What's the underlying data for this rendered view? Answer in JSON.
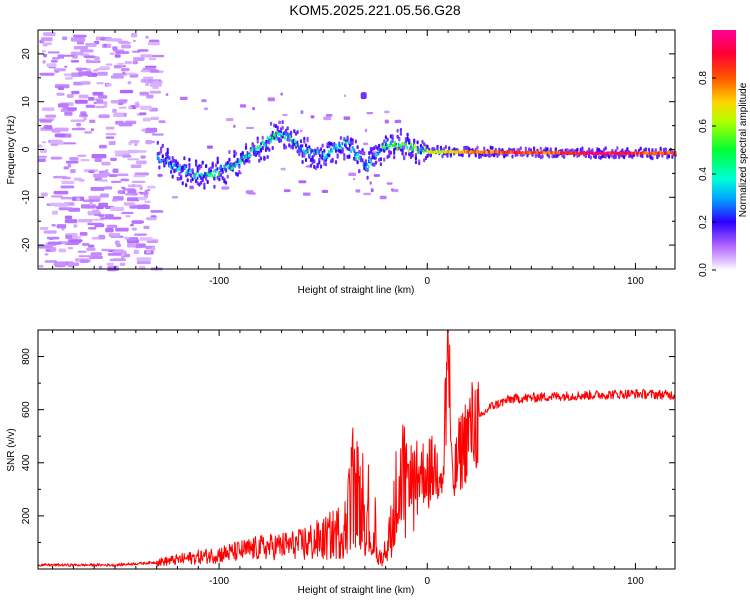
{
  "title": "KOM5.2025.221.05.56.G28",
  "chart_data": [
    {
      "type": "heatmap",
      "name": "spectrogram",
      "xlabel": "Height of straight line (km)",
      "ylabel": "Frequency (Hz)",
      "xlim": [
        -187,
        119
      ],
      "ylim": [
        -25,
        25
      ],
      "xticks": [
        -100,
        0,
        100
      ],
      "xtick_labels": [
        "-100",
        "0",
        "100"
      ],
      "yticks": [
        -20,
        -10,
        0,
        10,
        20
      ],
      "ytick_labels": [
        "-20",
        "-10",
        "0",
        "10",
        "20"
      ],
      "colorbar": {
        "label": "Normalized spectral amplitude",
        "range": [
          0,
          1
        ],
        "ticks": [
          0.0,
          0.2,
          0.4,
          0.6,
          0.8
        ],
        "tick_labels": [
          "0.0",
          "0.2",
          "0.4",
          "0.6",
          "0.8"
        ]
      },
      "ridge": {
        "description": "dominant frequency line vs height",
        "x": [
          -130,
          -120,
          -110,
          -100,
          -90,
          -80,
          -70,
          -60,
          -50,
          -40,
          -30,
          -20,
          -10,
          0,
          20,
          40,
          60,
          80,
          100,
          119
        ],
        "y": [
          -1.5,
          -4,
          -5.5,
          -4.5,
          -2.5,
          1,
          3.5,
          0,
          -1.5,
          1.5,
          -3.5,
          1,
          0.5,
          -0.5,
          -0.5,
          -0.6,
          -0.7,
          -0.8,
          -0.8,
          -0.7
        ],
        "amplitude": [
          0.3,
          0.35,
          0.4,
          0.45,
          0.45,
          0.4,
          0.45,
          0.4,
          0.35,
          0.4,
          0.35,
          0.5,
          0.55,
          0.6,
          0.75,
          0.85,
          0.8,
          0.95,
          0.85,
          0.8
        ]
      }
    },
    {
      "type": "line",
      "name": "snr",
      "xlabel": "Height of straight line (km)",
      "ylabel": "SNR (v/v)",
      "xlim": [
        -187,
        119
      ],
      "ylim": [
        0,
        900
      ],
      "xticks": [
        -100,
        0,
        100
      ],
      "xtick_labels": [
        "-100",
        "0",
        "100"
      ],
      "yticks": [
        200,
        400,
        600,
        800
      ],
      "ytick_labels": [
        "200",
        "400",
        "600",
        "800"
      ],
      "color": "#ff0000",
      "envelope": {
        "x": [
          -187,
          -150,
          -130,
          -120,
          -100,
          -80,
          -60,
          -50,
          -40,
          -35,
          -30,
          -25,
          -20,
          -15,
          -10,
          -5,
          0,
          5,
          8,
          10,
          12,
          15,
          20,
          30,
          40,
          60,
          80,
          100,
          119
        ],
        "y": [
          15,
          15,
          25,
          35,
          55,
          80,
          95,
          110,
          150,
          320,
          200,
          60,
          40,
          260,
          350,
          360,
          370,
          380,
          430,
          880,
          300,
          420,
          520,
          610,
          640,
          650,
          655,
          660,
          655
        ]
      }
    }
  ]
}
